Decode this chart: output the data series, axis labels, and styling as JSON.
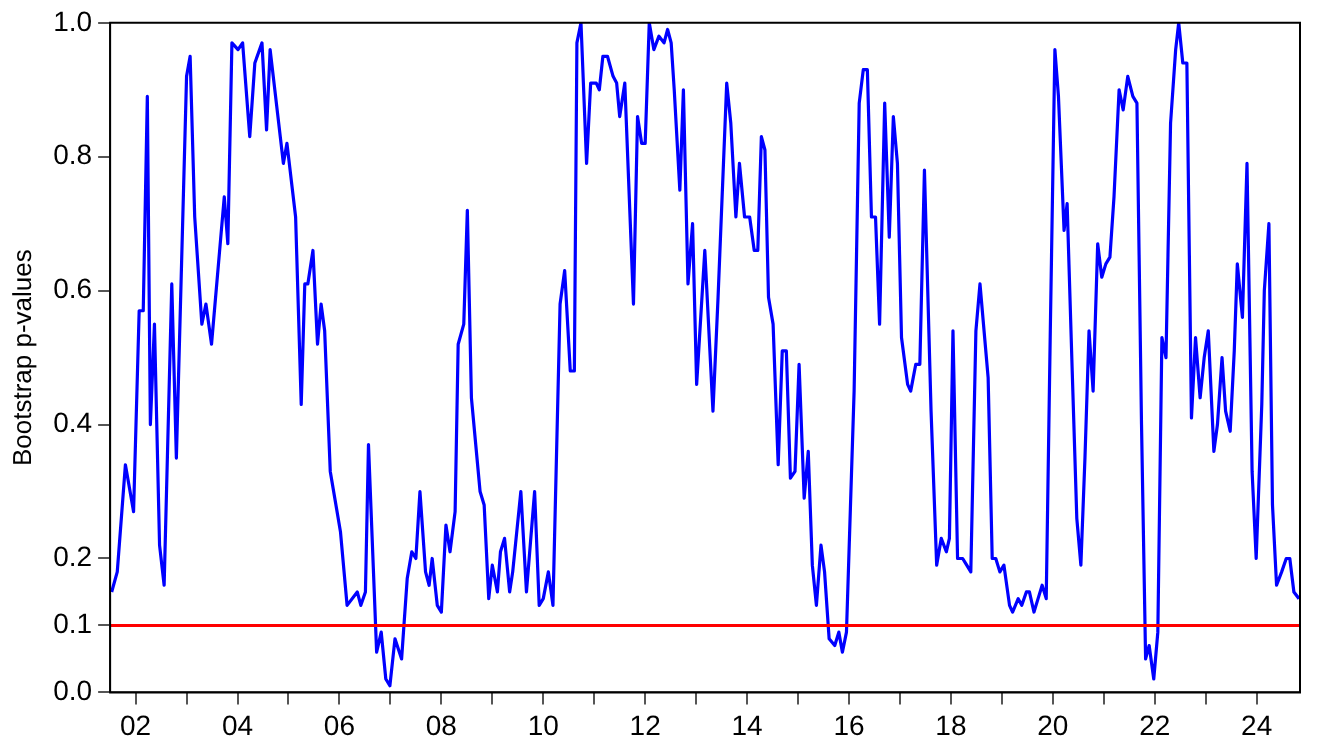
{
  "chart_data": {
    "type": "line",
    "ylabel": "Bootstrap p-values",
    "x": [
      2001.53,
      2001.64,
      2001.8,
      2001.96,
      2002.07,
      2002.15,
      2002.23,
      2002.29,
      2002.37,
      2002.47,
      2002.56,
      2002.71,
      2002.8,
      2003.0,
      2003.07,
      2003.16,
      2003.3,
      2003.38,
      2003.49,
      2003.74,
      2003.81,
      2003.89,
      2004.01,
      2004.1,
      2004.24,
      2004.34,
      2004.48,
      2004.57,
      2004.64,
      2004.9,
      2004.97,
      2005.14,
      2005.25,
      2005.32,
      2005.38,
      2005.48,
      2005.57,
      2005.64,
      2005.71,
      2005.82,
      2006.02,
      2006.15,
      2006.35,
      2006.42,
      2006.51,
      2006.57,
      2006.73,
      2006.82,
      2006.91,
      2006.99,
      2007.09,
      2007.22,
      2007.33,
      2007.42,
      2007.5,
      2007.58,
      2007.69,
      2007.76,
      2007.82,
      2007.92,
      2008.0,
      2008.09,
      2008.17,
      2008.27,
      2008.33,
      2008.44,
      2008.51,
      2008.59,
      2008.76,
      2008.84,
      2008.93,
      2009.0,
      2009.1,
      2009.16,
      2009.24,
      2009.34,
      2009.4,
      2009.56,
      2009.67,
      2009.83,
      2009.92,
      2010.0,
      2010.1,
      2010.19,
      2010.33,
      2010.42,
      2010.53,
      2010.61,
      2010.66,
      2010.74,
      2010.85,
      2010.93,
      2011.04,
      2011.1,
      2011.17,
      2011.26,
      2011.37,
      2011.44,
      2011.5,
      2011.6,
      2011.77,
      2011.85,
      2011.93,
      2012.0,
      2012.08,
      2012.17,
      2012.27,
      2012.37,
      2012.44,
      2012.51,
      2012.57,
      2012.68,
      2012.75,
      2012.84,
      2012.93,
      2013.01,
      2013.17,
      2013.33,
      2013.43,
      2013.6,
      2013.68,
      2013.78,
      2013.85,
      2013.95,
      2014.05,
      2014.14,
      2014.21,
      2014.28,
      2014.35,
      2014.42,
      2014.51,
      2014.61,
      2014.69,
      2014.77,
      2014.85,
      2014.94,
      2015.02,
      2015.12,
      2015.2,
      2015.28,
      2015.36,
      2015.45,
      2015.52,
      2015.61,
      2015.72,
      2015.8,
      2015.87,
      2015.95,
      2016.1,
      2016.2,
      2016.28,
      2016.36,
      2016.44,
      2016.52,
      2016.6,
      2016.7,
      2016.79,
      2016.87,
      2016.95,
      2017.03,
      2017.15,
      2017.21,
      2017.31,
      2017.39,
      2017.48,
      2017.61,
      2017.72,
      2017.81,
      2017.91,
      2017.97,
      2018.04,
      2018.13,
      2018.23,
      2018.31,
      2018.39,
      2018.49,
      2018.57,
      2018.65,
      2018.73,
      2018.81,
      2018.88,
      2018.96,
      2019.04,
      2019.15,
      2019.21,
      2019.32,
      2019.39,
      2019.48,
      2019.54,
      2019.63,
      2019.71,
      2019.79,
      2019.87,
      2019.95,
      2020.04,
      2020.11,
      2020.22,
      2020.28,
      2020.38,
      2020.47,
      2020.55,
      2020.63,
      2020.71,
      2020.79,
      2020.88,
      2020.96,
      2021.04,
      2021.12,
      2021.2,
      2021.3,
      2021.38,
      2021.47,
      2021.57,
      2021.65,
      2021.74,
      2021.82,
      2021.89,
      2021.98,
      2022.06,
      2022.14,
      2022.22,
      2022.31,
      2022.41,
      2022.47,
      2022.55,
      2022.63,
      2022.72,
      2022.8,
      2022.89,
      2022.97,
      2023.05,
      2023.16,
      2023.23,
      2023.32,
      2023.39,
      2023.48,
      2023.56,
      2023.62,
      2023.72,
      2023.81,
      2023.91,
      2023.99,
      2024.1,
      2024.15,
      2024.24,
      2024.31,
      2024.39,
      2024.49,
      2024.58,
      2024.65,
      2024.73,
      2024.83
    ],
    "series": [
      {
        "color": "#0000ff",
        "values": [
          0.15,
          0.18,
          0.34,
          0.27,
          0.57,
          0.57,
          0.89,
          0.4,
          0.55,
          0.22,
          0.16,
          0.61,
          0.35,
          0.92,
          0.95,
          0.71,
          0.55,
          0.58,
          0.52,
          0.74,
          0.67,
          0.97,
          0.96,
          0.97,
          0.83,
          0.94,
          0.97,
          0.84,
          0.96,
          0.79,
          0.82,
          0.71,
          0.43,
          0.61,
          0.61,
          0.66,
          0.52,
          0.58,
          0.54,
          0.33,
          0.24,
          0.13,
          0.15,
          0.13,
          0.15,
          0.37,
          0.06,
          0.09,
          0.02,
          0.01,
          0.08,
          0.05,
          0.17,
          0.21,
          0.2,
          0.3,
          0.18,
          0.16,
          0.2,
          0.13,
          0.12,
          0.25,
          0.21,
          0.27,
          0.52,
          0.55,
          0.72,
          0.44,
          0.3,
          0.28,
          0.14,
          0.19,
          0.15,
          0.21,
          0.23,
          0.15,
          0.18,
          0.3,
          0.15,
          0.3,
          0.13,
          0.14,
          0.18,
          0.13,
          0.58,
          0.63,
          0.48,
          0.48,
          0.97,
          1.0,
          0.79,
          0.91,
          0.91,
          0.9,
          0.95,
          0.95,
          0.92,
          0.91,
          0.86,
          0.91,
          0.58,
          0.86,
          0.82,
          0.82,
          1.0,
          0.96,
          0.98,
          0.97,
          0.99,
          0.97,
          0.9,
          0.75,
          0.9,
          0.61,
          0.7,
          0.46,
          0.66,
          0.42,
          0.59,
          0.91,
          0.85,
          0.71,
          0.79,
          0.71,
          0.71,
          0.66,
          0.66,
          0.83,
          0.81,
          0.59,
          0.55,
          0.34,
          0.51,
          0.51,
          0.32,
          0.33,
          0.49,
          0.29,
          0.36,
          0.19,
          0.13,
          0.22,
          0.18,
          0.08,
          0.07,
          0.09,
          0.06,
          0.09,
          0.45,
          0.88,
          0.93,
          0.93,
          0.71,
          0.71,
          0.55,
          0.88,
          0.68,
          0.86,
          0.79,
          0.53,
          0.46,
          0.45,
          0.49,
          0.49,
          0.78,
          0.42,
          0.19,
          0.23,
          0.21,
          0.23,
          0.54,
          0.2,
          0.2,
          0.19,
          0.18,
          0.54,
          0.61,
          0.54,
          0.47,
          0.2,
          0.2,
          0.18,
          0.19,
          0.13,
          0.12,
          0.14,
          0.13,
          0.15,
          0.15,
          0.12,
          0.14,
          0.16,
          0.14,
          0.54,
          0.96,
          0.89,
          0.69,
          0.73,
          0.48,
          0.26,
          0.19,
          0.35,
          0.54,
          0.45,
          0.67,
          0.62,
          0.64,
          0.65,
          0.74,
          0.9,
          0.87,
          0.92,
          0.89,
          0.88,
          0.4,
          0.05,
          0.07,
          0.02,
          0.09,
          0.53,
          0.5,
          0.85,
          0.96,
          1.0,
          0.94,
          0.94,
          0.41,
          0.53,
          0.44,
          0.5,
          0.54,
          0.36,
          0.4,
          0.5,
          0.42,
          0.39,
          0.51,
          0.64,
          0.56,
          0.79,
          0.33,
          0.2,
          0.43,
          0.6,
          0.7,
          0.28,
          0.16,
          0.18,
          0.2,
          0.2,
          0.15,
          0.14
        ]
      }
    ],
    "xlim": [
      2001.5,
      2024.85
    ],
    "xticks": [
      {
        "value": 2002,
        "label": "02"
      },
      {
        "value": 2003,
        "label": null
      },
      {
        "value": 2004,
        "label": "04"
      },
      {
        "value": 2005,
        "label": null
      },
      {
        "value": 2006,
        "label": "06"
      },
      {
        "value": 2007,
        "label": null
      },
      {
        "value": 2008,
        "label": "08"
      },
      {
        "value": 2009,
        "label": null
      },
      {
        "value": 2010,
        "label": "10"
      },
      {
        "value": 2011,
        "label": null
      },
      {
        "value": 2012,
        "label": "12"
      },
      {
        "value": 2013,
        "label": null
      },
      {
        "value": 2014,
        "label": "14"
      },
      {
        "value": 2015,
        "label": null
      },
      {
        "value": 2016,
        "label": "16"
      },
      {
        "value": 2017,
        "label": null
      },
      {
        "value": 2018,
        "label": "18"
      },
      {
        "value": 2019,
        "label": null
      },
      {
        "value": 2020,
        "label": "20"
      },
      {
        "value": 2021,
        "label": null
      },
      {
        "value": 2022,
        "label": "22"
      },
      {
        "value": 2023,
        "label": null
      },
      {
        "value": 2024,
        "label": "24"
      }
    ],
    "ylim": [
      0,
      1
    ],
    "yticks": [
      {
        "value": 0,
        "label": "0.0"
      },
      {
        "value": 0.1,
        "label": "0.1"
      },
      {
        "value": 0.2,
        "label": "0.2"
      },
      {
        "value": 0.4,
        "label": "0.4"
      },
      {
        "value": 0.6,
        "label": "0.6"
      },
      {
        "value": 0.8,
        "label": "0.8"
      },
      {
        "value": 1,
        "label": "1.0"
      }
    ],
    "ref_lines": [
      {
        "axis": "y",
        "value": 0.1,
        "color": "#ff0000"
      }
    ],
    "grid": false,
    "legend": false,
    "marker": "none",
    "line_style": "solid"
  }
}
